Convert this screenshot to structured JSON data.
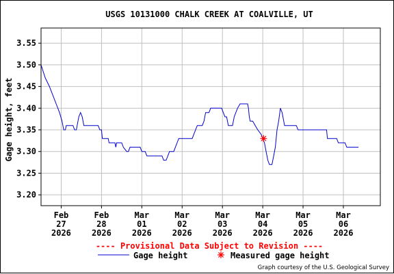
{
  "title": "USGS 10131000 CHALK CREEK AT COALVILLE, UT",
  "ylabel": "Gage height, feet",
  "provisional_text": "---- Provisional Data Subject to Revision ----",
  "legend": {
    "gage_height": "Gage height",
    "measured": "Measured gage height"
  },
  "credit": "Graph courtesy of the U.S. Geological Survey",
  "colors": {
    "series": "#0000cc",
    "measured": "#ff0000",
    "grid": "#c0c0c0",
    "provisional": "#ff0000"
  },
  "chart_data": {
    "type": "line",
    "title": "USGS 10131000 CHALK CREEK AT COALVILLE, UT",
    "xlabel": "",
    "ylabel": "Gage height, feet",
    "xlim": [
      "2026-02-26T12:00",
      "2026-03-06T22:00"
    ],
    "ylim": [
      3.175,
      3.585
    ],
    "grid": true,
    "x_ticks": [
      {
        "value": "2026-02-27T00:00",
        "label": [
          "Feb",
          "27",
          "2026"
        ]
      },
      {
        "value": "2026-02-28T00:00",
        "label": [
          "Feb",
          "28",
          "2026"
        ]
      },
      {
        "value": "2026-03-01T00:00",
        "label": [
          "Mar",
          "01",
          "2026"
        ]
      },
      {
        "value": "2026-03-02T00:00",
        "label": [
          "Mar",
          "02",
          "2026"
        ]
      },
      {
        "value": "2026-03-03T00:00",
        "label": [
          "Mar",
          "03",
          "2026"
        ]
      },
      {
        "value": "2026-03-04T00:00",
        "label": [
          "Mar",
          "04",
          "2026"
        ]
      },
      {
        "value": "2026-03-05T00:00",
        "label": [
          "Mar",
          "05",
          "2026"
        ]
      },
      {
        "value": "2026-03-06T00:00",
        "label": [
          "Mar",
          "06",
          "2026"
        ]
      }
    ],
    "y_ticks": [
      3.2,
      3.25,
      3.3,
      3.35,
      3.4,
      3.45,
      3.5,
      3.55
    ],
    "series": [
      {
        "name": "Gage height",
        "points": [
          [
            "2026-02-26T12:00",
            3.5
          ],
          [
            "2026-02-26T14:30",
            3.47
          ],
          [
            "2026-02-26T17:00",
            3.45
          ],
          [
            "2026-02-26T19:00",
            3.43
          ],
          [
            "2026-02-26T21:00",
            3.41
          ],
          [
            "2026-02-26T23:00",
            3.39
          ],
          [
            "2026-02-27T00:30",
            3.37
          ],
          [
            "2026-02-27T01:30",
            3.35
          ],
          [
            "2026-02-27T02:30",
            3.35
          ],
          [
            "2026-02-27T03:00",
            3.36
          ],
          [
            "2026-02-27T07:00",
            3.36
          ],
          [
            "2026-02-27T08:00",
            3.35
          ],
          [
            "2026-02-27T09:00",
            3.35
          ],
          [
            "2026-02-27T10:30",
            3.38
          ],
          [
            "2026-02-27T11:30",
            3.39
          ],
          [
            "2026-02-27T12:30",
            3.38
          ],
          [
            "2026-02-27T13:30",
            3.36
          ],
          [
            "2026-02-27T22:00",
            3.36
          ],
          [
            "2026-02-27T23:00",
            3.35
          ],
          [
            "2026-02-28T00:00",
            3.35
          ],
          [
            "2026-02-28T00:30",
            3.33
          ],
          [
            "2026-02-28T04:00",
            3.33
          ],
          [
            "2026-02-28T04:30",
            3.32
          ],
          [
            "2026-02-28T08:00",
            3.32
          ],
          [
            "2026-02-28T08:30",
            3.31
          ],
          [
            "2026-02-28T09:00",
            3.32
          ],
          [
            "2026-02-28T12:00",
            3.32
          ],
          [
            "2026-02-28T13:00",
            3.31
          ],
          [
            "2026-02-28T15:00",
            3.3
          ],
          [
            "2026-02-28T16:00",
            3.3
          ],
          [
            "2026-02-28T17:00",
            3.31
          ],
          [
            "2026-02-28T23:00",
            3.31
          ],
          [
            "2026-03-01T00:00",
            3.3
          ],
          [
            "2026-03-01T02:00",
            3.3
          ],
          [
            "2026-03-01T03:00",
            3.29
          ],
          [
            "2026-03-01T12:00",
            3.29
          ],
          [
            "2026-03-01T13:00",
            3.28
          ],
          [
            "2026-03-01T14:30",
            3.28
          ],
          [
            "2026-03-01T15:30",
            3.29
          ],
          [
            "2026-03-01T16:30",
            3.3
          ],
          [
            "2026-03-01T19:00",
            3.3
          ],
          [
            "2026-03-01T20:00",
            3.31
          ],
          [
            "2026-03-01T21:00",
            3.32
          ],
          [
            "2026-03-01T22:00",
            3.33
          ],
          [
            "2026-03-02T06:00",
            3.33
          ],
          [
            "2026-03-02T07:00",
            3.34
          ],
          [
            "2026-03-02T08:00",
            3.35
          ],
          [
            "2026-03-02T09:00",
            3.36
          ],
          [
            "2026-03-02T12:00",
            3.36
          ],
          [
            "2026-03-02T13:00",
            3.37
          ],
          [
            "2026-03-02T14:00",
            3.39
          ],
          [
            "2026-03-02T16:00",
            3.39
          ],
          [
            "2026-03-02T17:00",
            3.4
          ],
          [
            "2026-03-02T23:30",
            3.4
          ],
          [
            "2026-03-03T00:30",
            3.39
          ],
          [
            "2026-03-03T01:30",
            3.38
          ],
          [
            "2026-03-03T02:30",
            3.38
          ],
          [
            "2026-03-03T03:30",
            3.36
          ],
          [
            "2026-03-03T06:00",
            3.36
          ],
          [
            "2026-03-03T07:00",
            3.38
          ],
          [
            "2026-03-03T08:00",
            3.39
          ],
          [
            "2026-03-03T09:00",
            3.4
          ],
          [
            "2026-03-03T10:30",
            3.41
          ],
          [
            "2026-03-03T15:00",
            3.41
          ],
          [
            "2026-03-03T15:30",
            3.4
          ],
          [
            "2026-03-03T16:00",
            3.38
          ],
          [
            "2026-03-03T16:30",
            3.37
          ],
          [
            "2026-03-03T18:00",
            3.37
          ],
          [
            "2026-03-03T19:30",
            3.36
          ],
          [
            "2026-03-03T21:00",
            3.35
          ],
          [
            "2026-03-03T23:00",
            3.34
          ],
          [
            "2026-03-04T00:00",
            3.33
          ],
          [
            "2026-03-04T01:00",
            3.32
          ],
          [
            "2026-03-04T02:00",
            3.3
          ],
          [
            "2026-03-04T03:00",
            3.28
          ],
          [
            "2026-03-04T04:00",
            3.27
          ],
          [
            "2026-03-04T05:30",
            3.27
          ],
          [
            "2026-03-04T06:30",
            3.29
          ],
          [
            "2026-03-04T07:30",
            3.31
          ],
          [
            "2026-03-04T08:30",
            3.35
          ],
          [
            "2026-03-04T09:30",
            3.37
          ],
          [
            "2026-03-04T10:30",
            3.4
          ],
          [
            "2026-03-04T11:30",
            3.39
          ],
          [
            "2026-03-04T12:30",
            3.37
          ],
          [
            "2026-03-04T13:00",
            3.36
          ],
          [
            "2026-03-04T20:00",
            3.36
          ],
          [
            "2026-03-04T21:00",
            3.35
          ],
          [
            "2026-03-05T14:00",
            3.35
          ],
          [
            "2026-03-05T14:30",
            3.33
          ],
          [
            "2026-03-05T20:00",
            3.33
          ],
          [
            "2026-03-05T21:00",
            3.32
          ],
          [
            "2026-03-06T01:00",
            3.32
          ],
          [
            "2026-03-06T02:00",
            3.31
          ],
          [
            "2026-03-06T09:00",
            3.31
          ]
        ]
      }
    ],
    "measurements": [
      {
        "name": "Measured gage height",
        "x": "2026-03-04T00:30",
        "y": 3.33
      }
    ]
  }
}
